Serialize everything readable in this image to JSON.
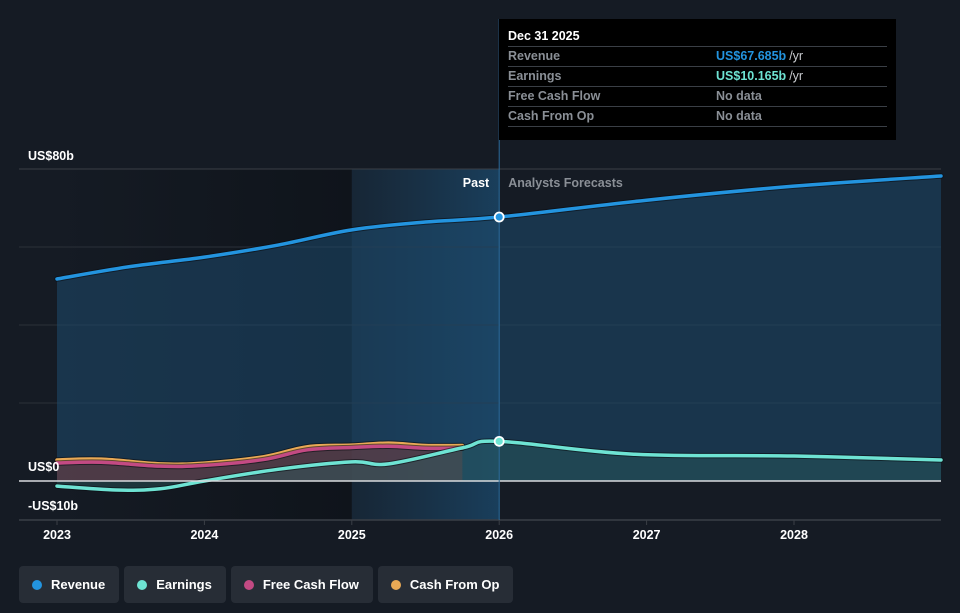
{
  "colors": {
    "background": "#151b24",
    "revenue": "#2394df",
    "earnings": "#6ee3d3",
    "free_cash_flow": "#c34a83",
    "cash_from_op": "#e9a955",
    "tooltip_bg": "#000000"
  },
  "tooltip": {
    "date": "Dec 31 2025",
    "rows": [
      {
        "label": "Revenue",
        "value": "US$67.685b",
        "unit": "/yr",
        "color": "#2394df"
      },
      {
        "label": "Earnings",
        "value": "US$10.165b",
        "unit": "/yr",
        "color": "#6ee3d3"
      },
      {
        "label": "Free Cash Flow",
        "value": "No data",
        "unit": "",
        "color": "#8a8f96"
      },
      {
        "label": "Cash From Op",
        "value": "No data",
        "unit": "",
        "color": "#8a8f96"
      }
    ]
  },
  "dividers": {
    "past_label": "Past",
    "forecast_label": "Analysts Forecasts"
  },
  "legend": [
    {
      "label": "Revenue",
      "color": "#2394df"
    },
    {
      "label": "Earnings",
      "color": "#6ee3d3"
    },
    {
      "label": "Free Cash Flow",
      "color": "#c34a83"
    },
    {
      "label": "Cash From Op",
      "color": "#e9a955"
    }
  ],
  "chart_data": {
    "type": "area",
    "title": "",
    "xlabel": "",
    "ylabel": "",
    "x_ticks": [
      "2023",
      "2024",
      "2025",
      "2026",
      "2027",
      "2028"
    ],
    "x_tick_values": [
      2023,
      2024,
      2025,
      2026,
      2027,
      2028
    ],
    "xlim": [
      2023,
      2029
    ],
    "ylim": [
      -10,
      80
    ],
    "y_tick_labels": [
      {
        "value": 80,
        "label": "US$80b"
      },
      {
        "value": 0,
        "label": "US$0"
      },
      {
        "value": -10,
        "label": "-US$10b"
      }
    ],
    "gridlines": [
      80,
      60,
      40,
      20,
      0
    ],
    "past_forecast_split": 2026,
    "highlight_start": 2025,
    "grid": true,
    "legend_position": "bottom-left",
    "series": [
      {
        "name": "Revenue",
        "color": "#2394df",
        "x": [
          2023,
          2023.5,
          2024,
          2024.5,
          2025,
          2025.5,
          2026,
          2027,
          2028,
          2029
        ],
        "values": [
          51.8,
          55.0,
          57.4,
          60.5,
          64.4,
          66.4,
          67.685,
          72.0,
          75.6,
          78.2
        ]
      },
      {
        "name": "Earnings",
        "color": "#6ee3d3",
        "x": [
          2023,
          2023.4,
          2023.7,
          2024,
          2024.5,
          2025,
          2025.25,
          2025.75,
          2026,
          2026.9,
          2028,
          2029
        ],
        "values": [
          -1.3,
          -2.3,
          -2.0,
          0.0,
          3.0,
          4.9,
          4.4,
          8.5,
          10.165,
          6.9,
          6.4,
          5.4
        ]
      },
      {
        "name": "Free Cash Flow",
        "color": "#c34a83",
        "x": [
          2023,
          2023.3,
          2023.7,
          2024,
          2024.4,
          2024.7,
          2025,
          2025.25,
          2025.5,
          2025.75
        ],
        "values": [
          4.6,
          4.8,
          3.8,
          4.0,
          5.5,
          8.0,
          8.6,
          8.9,
          8.4,
          8.4
        ]
      },
      {
        "name": "Cash From Op",
        "color": "#e9a955",
        "x": [
          2023,
          2023.3,
          2023.7,
          2024,
          2024.4,
          2024.7,
          2025,
          2025.25,
          2025.5,
          2025.75
        ],
        "values": [
          5.4,
          5.6,
          4.4,
          4.6,
          6.2,
          8.8,
          9.2,
          9.7,
          9.1,
          9.1
        ]
      }
    ],
    "markers": [
      {
        "series": "Revenue",
        "x": 2026,
        "value": 67.685
      },
      {
        "series": "Earnings",
        "x": 2026,
        "value": 10.165
      }
    ]
  }
}
